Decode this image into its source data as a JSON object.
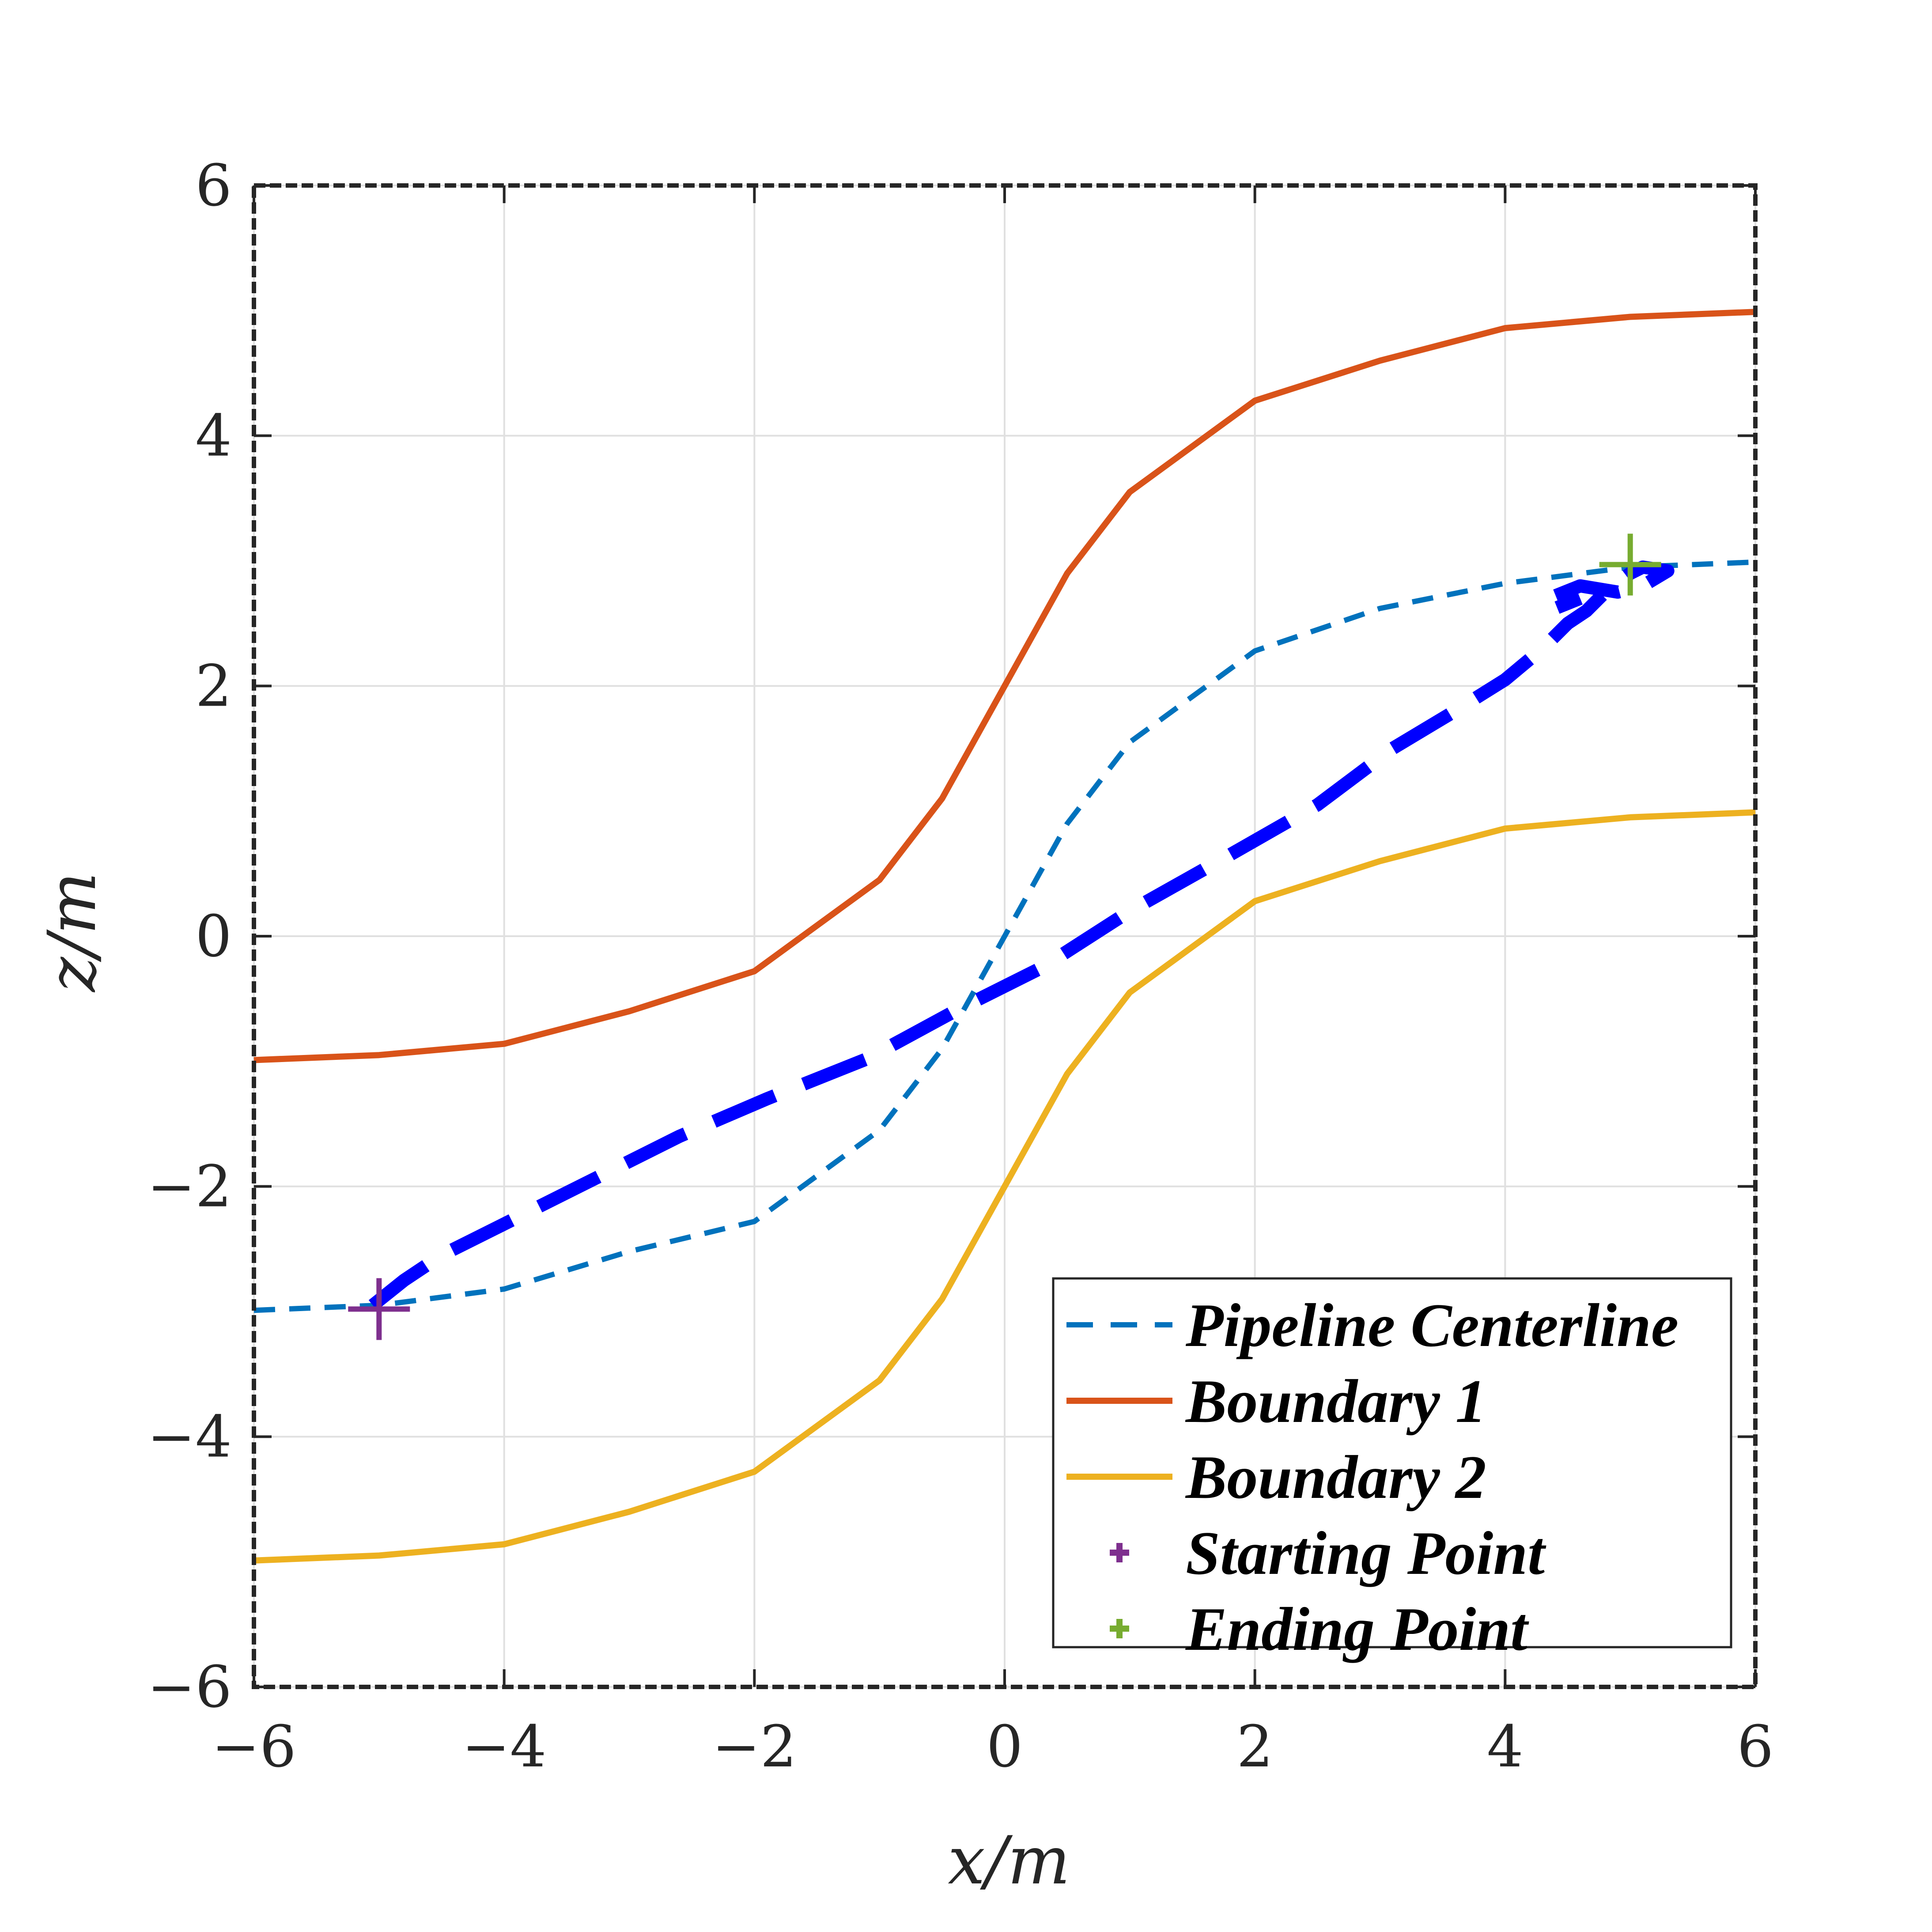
{
  "chart_data": {
    "type": "line",
    "xlabel": "x/m",
    "ylabel": "z/m",
    "xlim": [
      -6,
      6
    ],
    "ylim": [
      -6,
      6
    ],
    "xticks": [
      "−6",
      "−4",
      "−2",
      "0",
      "2",
      "4",
      "6"
    ],
    "yticks": [
      "−6",
      "−4",
      "−2",
      "0",
      "2",
      "4",
      "6"
    ],
    "grid": true,
    "legend_position": "bottom-right",
    "series": [
      {
        "name": "Pipeline Centerline",
        "style": "dashed",
        "color": "#0072BD",
        "x": [
          -6,
          -5,
          -4,
          -3,
          -2,
          -1,
          -0.5,
          0,
          0.5,
          1,
          2,
          3,
          4,
          5,
          6
        ],
        "y": [
          -2.99,
          -2.95,
          -2.82,
          -2.52,
          -2.28,
          -1.55,
          -0.9,
          0,
          0.9,
          1.55,
          2.28,
          2.62,
          2.82,
          2.95,
          2.99
        ]
      },
      {
        "name": "Boundary 1",
        "style": "solid",
        "color": "#D95319",
        "x": [
          -6,
          -5,
          -4,
          -3,
          -2,
          -1,
          -0.5,
          0,
          0.5,
          1,
          2,
          3,
          4,
          5,
          6
        ],
        "y": [
          -0.99,
          -0.95,
          -0.86,
          -0.6,
          -0.28,
          0.45,
          1.1,
          2.0,
          2.9,
          3.55,
          4.28,
          4.6,
          4.86,
          4.95,
          4.99
        ]
      },
      {
        "name": "Boundary 2",
        "style": "solid",
        "color": "#EDB120",
        "x": [
          -6,
          -5,
          -4,
          -3,
          -2,
          -1,
          -0.5,
          0,
          0.5,
          1,
          2,
          3,
          4,
          5,
          6
        ],
        "y": [
          -4.99,
          -4.95,
          -4.86,
          -4.6,
          -4.28,
          -3.55,
          -2.9,
          -2.0,
          -1.1,
          -0.45,
          0.28,
          0.6,
          0.86,
          0.95,
          0.99
        ]
      },
      {
        "name": "",
        "style": "thick-dashed",
        "color": "#0000FF",
        "x": [
          -5.05,
          -4.8,
          -4.5,
          -4.0,
          -3.3,
          -2.6,
          -1.9,
          -1.1,
          -0.4,
          0.3,
          1.0,
          1.8,
          2.5,
          3.1,
          3.6,
          4.0,
          4.3,
          4.5,
          4.65,
          4.8,
          5.0,
          5.1,
          5.3,
          5.1,
          4.9,
          4.6,
          4.4,
          4.3,
          4.4,
          4.6
        ],
        "y": [
          -2.95,
          -2.75,
          -2.55,
          -2.3,
          -1.95,
          -1.6,
          -1.3,
          -0.98,
          -0.6,
          -0.25,
          0.2,
          0.65,
          1.05,
          1.5,
          1.8,
          2.05,
          2.3,
          2.5,
          2.6,
          2.75,
          2.9,
          2.95,
          2.92,
          2.8,
          2.75,
          2.8,
          2.72,
          2.65,
          2.62,
          2.7
        ]
      }
    ],
    "markers": [
      {
        "name": "Starting Point",
        "x": -5.0,
        "y": -2.98,
        "color": "#7E2F8E",
        "symbol": "+"
      },
      {
        "name": "Ending Point",
        "x": 5.0,
        "y": 2.97,
        "color": "#77AC30",
        "symbol": "+"
      }
    ],
    "legend": [
      "Pipeline Centerline",
      "Boundary 1",
      "Boundary 2",
      "Starting Point",
      "Ending Point"
    ]
  }
}
